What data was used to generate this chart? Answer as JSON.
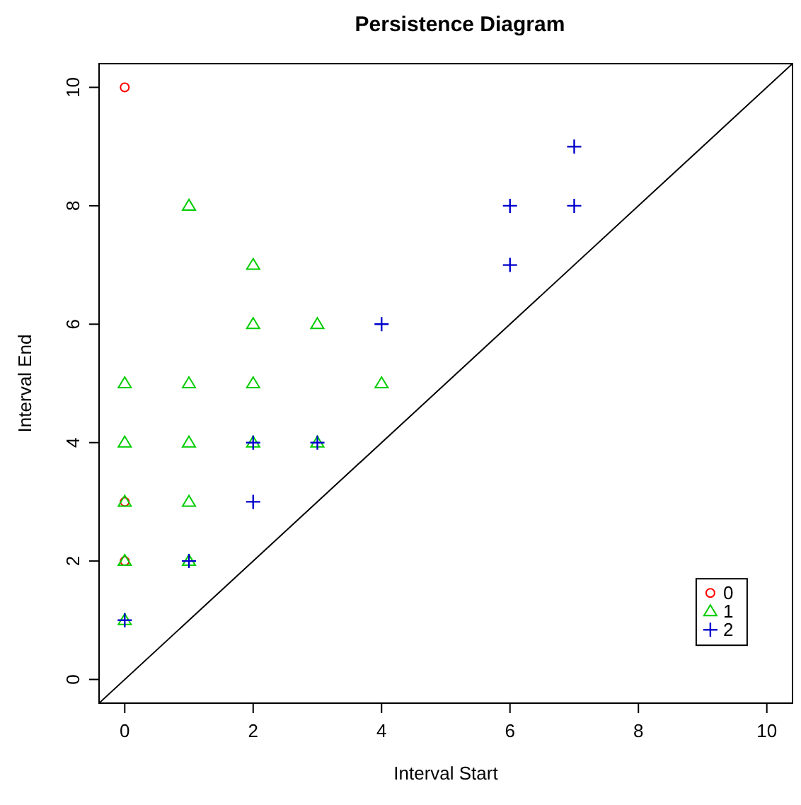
{
  "chart_data": {
    "type": "scatter",
    "title": "Persistence Diagram",
    "xlabel": "Interval Start",
    "ylabel": "Interval End",
    "xlim": [
      -0.4,
      10.4
    ],
    "ylim": [
      -0.4,
      10.4
    ],
    "xticks": [
      0,
      2,
      4,
      6,
      8,
      10
    ],
    "yticks": [
      0,
      2,
      4,
      6,
      8,
      10
    ],
    "grid": false,
    "legend": "bottom right",
    "series": [
      {
        "name": "0",
        "color": "#ff0000",
        "marker": "circle",
        "x": [
          0,
          0,
          0
        ],
        "values": [
          10,
          3,
          2
        ]
      },
      {
        "name": "1",
        "color": "#00cd00",
        "marker": "triangle",
        "x": [
          0,
          0,
          0,
          0,
          0,
          1,
          1,
          1,
          1,
          1,
          2,
          2,
          2,
          2,
          3,
          3,
          4
        ],
        "values": [
          5,
          4,
          3,
          2,
          1,
          8,
          5,
          4,
          3,
          2,
          7,
          6,
          5,
          4,
          6,
          4,
          5
        ]
      },
      {
        "name": "2",
        "color": "#0000cd",
        "marker": "cross",
        "x": [
          0,
          1,
          2,
          2,
          3,
          4,
          6,
          6,
          7,
          7
        ],
        "values": [
          1,
          2,
          4,
          3,
          4,
          6,
          8,
          7,
          9,
          8
        ]
      },
      {
        "type": "line",
        "color": "#000000",
        "marker": "none",
        "x": [
          -0.4,
          10.4
        ],
        "values": [
          -0.4,
          10.4
        ]
      }
    ]
  }
}
